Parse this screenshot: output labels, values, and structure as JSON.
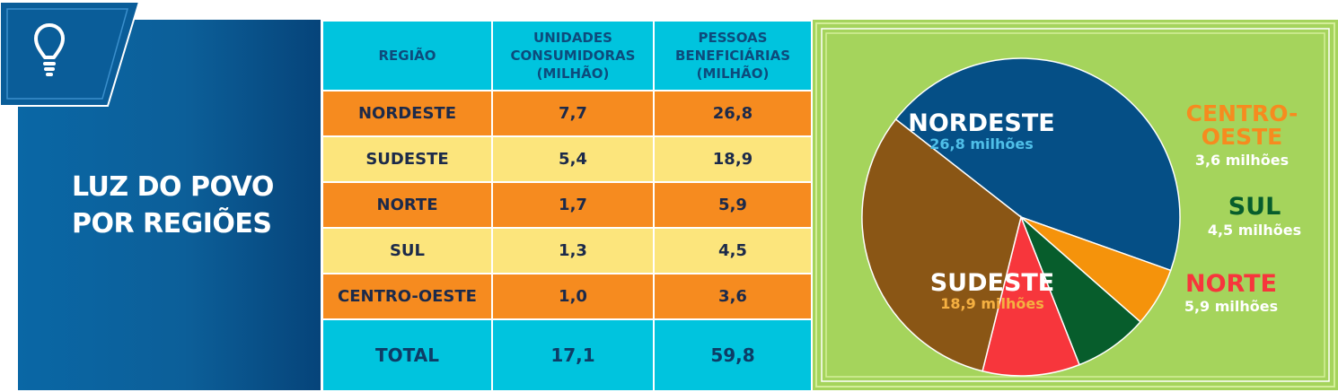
{
  "title": [
    "LUZ DO POVO",
    "POR REGIÕES"
  ],
  "table": {
    "headers": [
      [
        "REGIÃO"
      ],
      [
        "UNIDADES",
        "CONSUMIDORAS",
        "(MILHÃO)"
      ],
      [
        "PESSOAS",
        "BENEFICIÁRIAS",
        "(MILHÃO)"
      ]
    ],
    "rows": [
      {
        "region": "NORDESTE",
        "units": "7,7",
        "people": "26,8",
        "style": "orange"
      },
      {
        "region": "SUDESTE",
        "units": "5,4",
        "people": "18,9",
        "style": "yellow"
      },
      {
        "region": "NORTE",
        "units": "1,7",
        "people": "5,9",
        "style": "orange"
      },
      {
        "region": "SUL",
        "units": "1,3",
        "people": "4,5",
        "style": "yellow"
      },
      {
        "region": "CENTRO-OESTE",
        "units": "1,0",
        "people": "3,6",
        "style": "orange"
      }
    ],
    "total": {
      "label": "TOTAL",
      "units": "17,1",
      "people": "59,8"
    }
  },
  "chart_data": {
    "type": "pie",
    "title": "",
    "unit": "milhões",
    "slices": [
      {
        "label": "NORDESTE",
        "value": 26.8,
        "value_label": "26,8 milhões",
        "color": "#054f86",
        "label_color": "#ffffff",
        "value_color": "#4fbfe8"
      },
      {
        "label": "CENTRO-OESTE",
        "label_lines": [
          "CENTRO-",
          "OESTE"
        ],
        "value": 3.6,
        "value_label": "3,6 milhões",
        "color": "#f5930b",
        "label_color": "#f68b1f",
        "value_color": "#ffffff"
      },
      {
        "label": "SUL",
        "value": 4.5,
        "value_label": "4,5 milhões",
        "color": "#075d2c",
        "label_color": "#075d2c",
        "value_color": "#ffffff"
      },
      {
        "label": "NORTE",
        "value": 5.9,
        "value_label": "5,9 milhões",
        "color": "#f7363c",
        "label_color": "#f7363c",
        "value_color": "#ffffff"
      },
      {
        "label": "SUDESTE",
        "value": 18.9,
        "value_label": "18,9 milhões",
        "color": "#8a5615",
        "label_color": "#ffffff",
        "value_color": "#f5b041"
      }
    ]
  },
  "colors": {
    "panel_blue": "#0a67a5",
    "table_cyan": "#00c4de",
    "table_orange": "#f68b1f",
    "table_yellow": "#fce57c",
    "chart_bg": "#a5d45c"
  },
  "icons": [
    "lightbulb-icon"
  ]
}
